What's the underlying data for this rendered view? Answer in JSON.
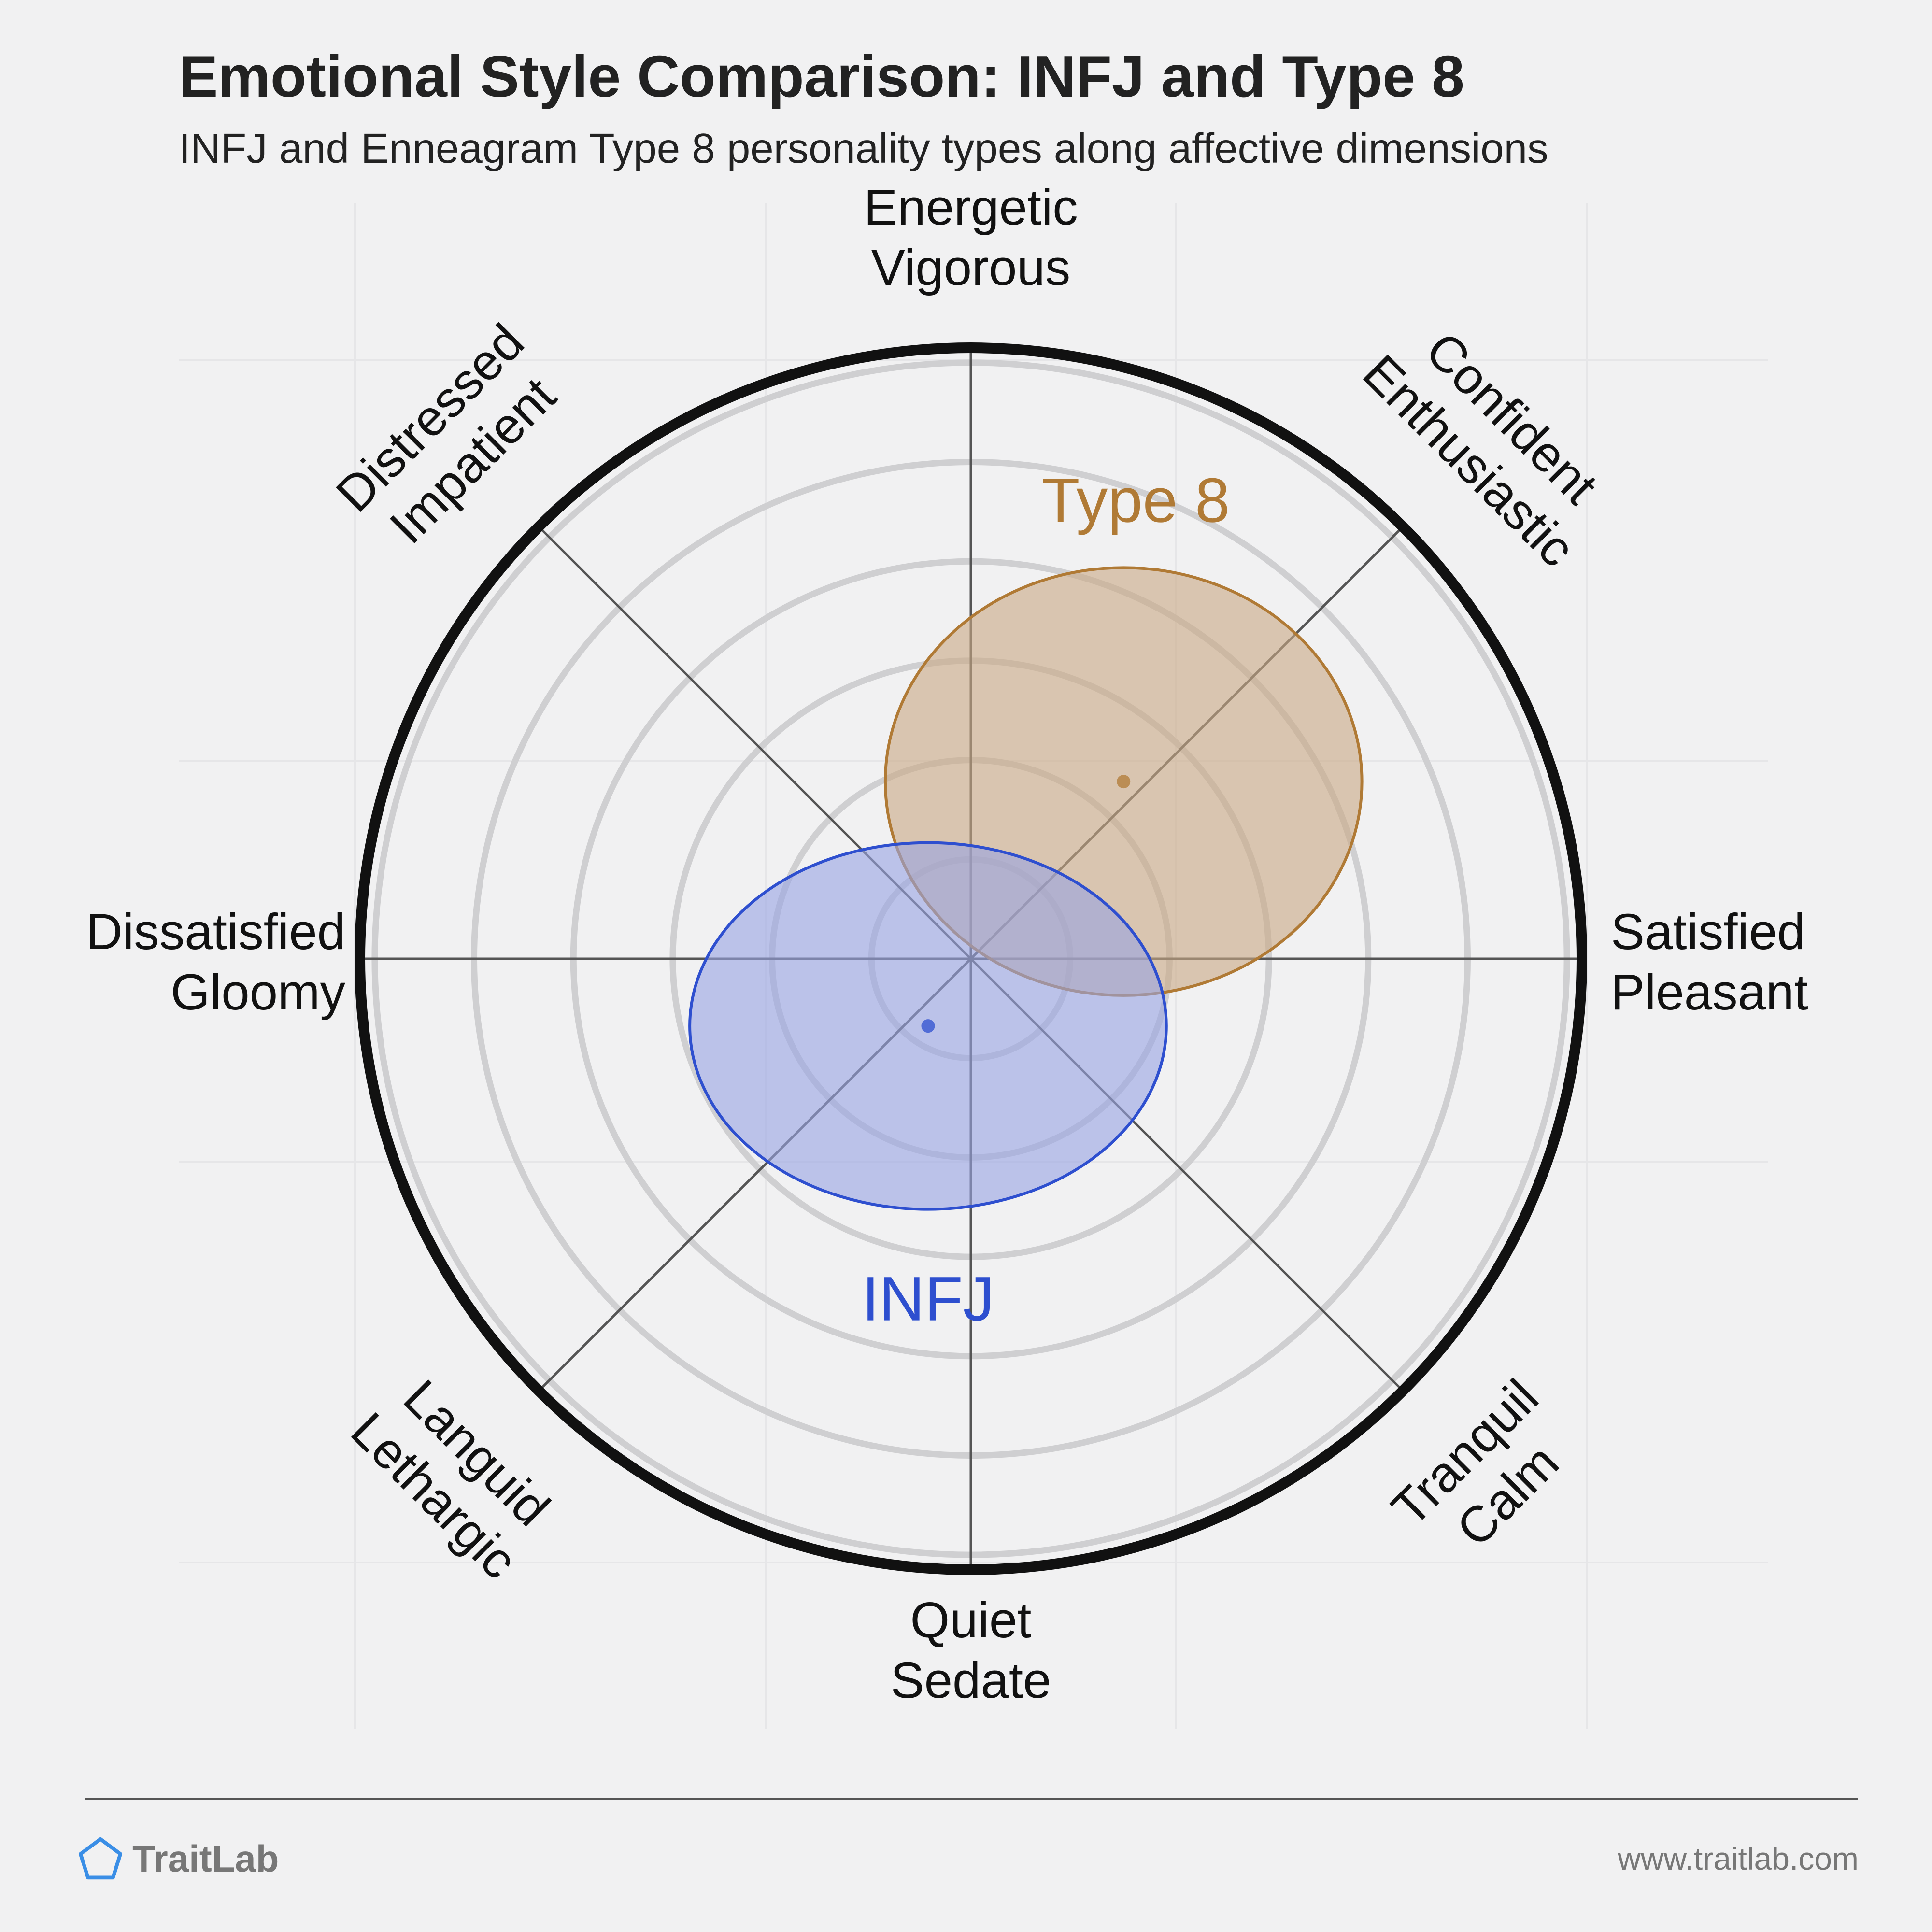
{
  "header": {
    "title": "Emotional Style Comparison: INFJ and Type 8",
    "subtitle": "INFJ and Enneagram Type 8 personality types along affective dimensions"
  },
  "chart_data": {
    "type": "scatter",
    "subtype": "circumplex",
    "title": "Emotional Style Comparison: INFJ and Type 8",
    "subtitle": "INFJ and Enneagram Type 8 personality types along affective dimensions",
    "axes": [
      {
        "lines": [
          "Energetic",
          "Vigorous"
        ],
        "angle_deg": 90
      },
      {
        "lines": [
          "Confident",
          "Enthusiastic"
        ],
        "angle_deg": 45
      },
      {
        "lines": [
          "Satisfied",
          "Pleasant"
        ],
        "angle_deg": 0
      },
      {
        "lines": [
          "Tranquil",
          "Calm"
        ],
        "angle_deg": -45
      },
      {
        "lines": [
          "Quiet",
          "Sedate"
        ],
        "angle_deg": -90
      },
      {
        "lines": [
          "Languid",
          "Lethargic"
        ],
        "angle_deg": -135
      },
      {
        "lines": [
          "Dissatisfied",
          "Gloomy"
        ],
        "angle_deg": 180
      },
      {
        "lines": [
          "Distressed",
          "Impatient"
        ],
        "angle_deg": 135
      }
    ],
    "x_axis": {
      "negative": "Dissatisfied / Gloomy",
      "positive": "Satisfied / Pleasant",
      "range": [
        -1,
        1
      ]
    },
    "y_axis": {
      "negative": "Quiet / Sedate",
      "positive": "Energetic / Vigorous",
      "range": [
        -1,
        1
      ]
    },
    "rings": 6,
    "series": [
      {
        "name": "Type 8",
        "x": 0.25,
        "y": 0.29,
        "spread_x": 0.39,
        "spread_y": 0.35,
        "color": "#b07a35",
        "fill": "#c9a983"
      },
      {
        "name": "INFJ",
        "x": -0.07,
        "y": -0.11,
        "spread_x": 0.39,
        "spread_y": 0.3,
        "color": "#2e4fcf",
        "fill": "#97a4e2"
      }
    ]
  },
  "footer": {
    "brand": "TraitLab",
    "website": "www.traitlab.com"
  }
}
